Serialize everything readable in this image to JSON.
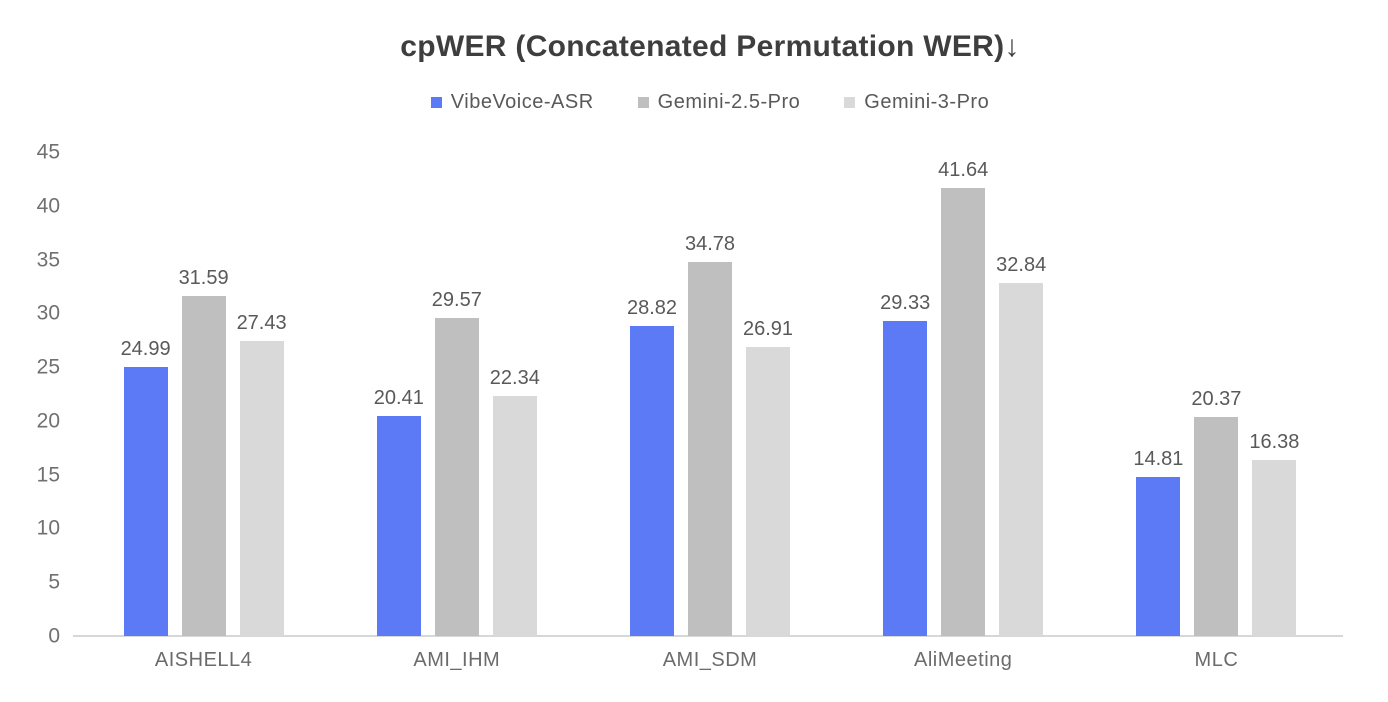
{
  "chart_data": {
    "type": "bar",
    "title": "cpWER (Concatenated Permutation WER)↓",
    "categories": [
      "AISHELL4",
      "AMI_IHM",
      "AMI_SDM",
      "AliMeeting",
      "MLC"
    ],
    "series": [
      {
        "name": "VibeVoice-ASR",
        "color": "#5C7AF5",
        "values": [
          24.99,
          20.41,
          28.82,
          29.33,
          14.81
        ]
      },
      {
        "name": "Gemini-2.5-Pro",
        "color": "#BFBFBF",
        "values": [
          31.59,
          29.57,
          34.78,
          41.64,
          20.37
        ]
      },
      {
        "name": "Gemini-3-Pro",
        "color": "#D9D9D9",
        "values": [
          27.43,
          22.34,
          26.91,
          32.84,
          16.38
        ]
      }
    ],
    "ylim": [
      0,
      45
    ],
    "yticks": [
      0,
      5,
      10,
      15,
      20,
      25,
      30,
      35,
      40,
      45
    ],
    "grid": false,
    "legend_position": "top",
    "value_labels": true,
    "value_label_decimals": 2
  },
  "colors": {
    "background": "#ffffff",
    "title_text": "#3e3e3e",
    "axis_tick_text": "#707070",
    "category_text": "#6b6b6b",
    "value_label_text": "#595959",
    "axis_line": "#d7d7d7"
  }
}
